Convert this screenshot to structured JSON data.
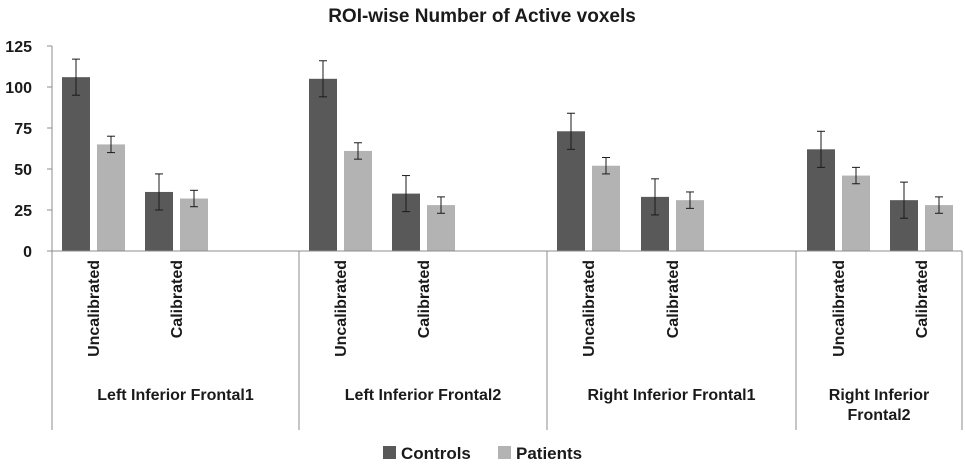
{
  "chart_data": {
    "type": "bar",
    "title": "ROI-wise Number of Active voxels",
    "ylim": [
      0,
      125
    ],
    "yticks": [
      0,
      25,
      50,
      75,
      100,
      125
    ],
    "groups": [
      {
        "label_lines": [
          "Left Inferior Frontal1"
        ],
        "categories": [
          "Uncalibrated",
          "Calibrated"
        ]
      },
      {
        "label_lines": [
          "Left Inferior Frontal2"
        ],
        "categories": [
          "Uncalibrated",
          "Calibrated"
        ]
      },
      {
        "label_lines": [
          "Right Inferior Frontal1"
        ],
        "categories": [
          "Uncalibrated",
          "Calibrated"
        ]
      },
      {
        "label_lines": [
          "Right Inferior",
          "Frontal2"
        ],
        "categories": [
          "Uncalibrated",
          "Calibrated"
        ]
      }
    ],
    "series": [
      {
        "name": "Controls",
        "color": "#595959",
        "values": [
          [
            106,
            36
          ],
          [
            105,
            35
          ],
          [
            73,
            33
          ],
          [
            62,
            31
          ]
        ],
        "errors": [
          [
            11,
            11
          ],
          [
            11,
            11
          ],
          [
            11,
            11
          ],
          [
            11,
            11
          ]
        ]
      },
      {
        "name": "Patients",
        "color": "#b3b3b3",
        "values": [
          [
            65,
            32
          ],
          [
            61,
            28
          ],
          [
            52,
            31
          ],
          [
            46,
            28
          ]
        ],
        "errors": [
          [
            5,
            5
          ],
          [
            5,
            5
          ],
          [
            5,
            5
          ],
          [
            5,
            5
          ]
        ]
      }
    ],
    "legend": [
      "Controls",
      "Patients"
    ],
    "legend_position": "bottom"
  }
}
